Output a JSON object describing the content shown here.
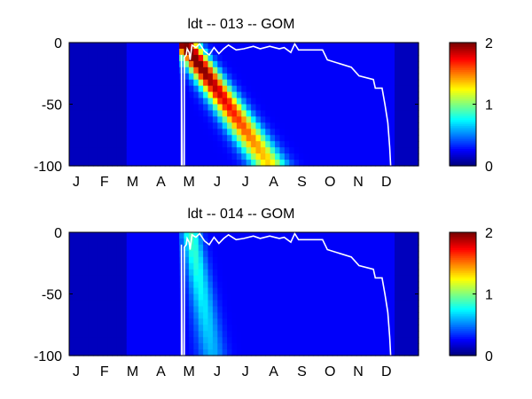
{
  "chart_data": [
    {
      "type": "heatmap",
      "title": "ldt -- 013 -- GOM",
      "x_tick_labels": [
        "J",
        "F",
        "M",
        "A",
        "M",
        "J",
        "J",
        "A",
        "S",
        "O",
        "N",
        "D"
      ],
      "y_ticks": [
        0,
        -50,
        -100
      ],
      "ylim": [
        -100,
        0
      ],
      "xlim_day_of_year": [
        1,
        365
      ],
      "color_range": [
        0,
        2
      ],
      "colorbar_ticks": [
        0,
        1,
        2
      ],
      "colormap": "jet",
      "grid": false,
      "legend": "colorbar-right",
      "hotspot": {
        "start_day": 125,
        "start_depth": -5,
        "end_day": 210,
        "end_depth": -100,
        "peak_value": 1.95,
        "width_days": 13
      },
      "background_level": 0.12,
      "contour_line": {
        "color": "#ffffff",
        "points": [
          [
            118,
            -100
          ],
          [
            118,
            -10
          ],
          [
            119,
            -100
          ],
          [
            121,
            -100
          ],
          [
            121,
            -12
          ],
          [
            123,
            -10
          ],
          [
            124,
            -5
          ],
          [
            126,
            -8
          ],
          [
            127,
            -14
          ],
          [
            129,
            -2
          ],
          [
            133,
            -4
          ],
          [
            137,
            -1
          ],
          [
            142,
            -7
          ],
          [
            147,
            -10
          ],
          [
            152,
            -4
          ],
          [
            157,
            -9
          ],
          [
            162,
            -5
          ],
          [
            167,
            -2
          ],
          [
            175,
            -6
          ],
          [
            183,
            -5
          ],
          [
            193,
            -3
          ],
          [
            200,
            -5
          ],
          [
            210,
            -3
          ],
          [
            220,
            -5
          ],
          [
            225,
            -4
          ],
          [
            232,
            -8
          ],
          [
            236,
            -1
          ],
          [
            240,
            -6
          ],
          [
            250,
            -6
          ],
          [
            265,
            -6
          ],
          [
            270,
            -14
          ],
          [
            295,
            -20
          ],
          [
            303,
            -27
          ],
          [
            318,
            -30
          ],
          [
            320,
            -37
          ],
          [
            327,
            -37
          ],
          [
            330,
            -50
          ],
          [
            333,
            -65
          ],
          [
            335,
            -85
          ],
          [
            336,
            -100
          ]
        ]
      }
    },
    {
      "type": "heatmap",
      "title": "ldt -- 014 -- GOM",
      "x_tick_labels": [
        "J",
        "F",
        "M",
        "A",
        "M",
        "J",
        "J",
        "A",
        "S",
        "O",
        "N",
        "D"
      ],
      "y_ticks": [
        0,
        -50,
        -100
      ],
      "ylim": [
        -100,
        0
      ],
      "xlim_day_of_year": [
        1,
        365
      ],
      "color_range": [
        0,
        2
      ],
      "colorbar_ticks": [
        0,
        1,
        2
      ],
      "colormap": "jet",
      "grid": false,
      "legend": "colorbar-right",
      "hotspot": {
        "start_day": 128,
        "start_depth": -3,
        "end_day": 150,
        "end_depth": -100,
        "peak_value": 0.65,
        "width_days": 10
      },
      "background_level": 0.12,
      "contour_line": {
        "color": "#ffffff",
        "points": [
          [
            118,
            -100
          ],
          [
            118,
            -10
          ],
          [
            119,
            -100
          ],
          [
            121,
            -100
          ],
          [
            121,
            -12
          ],
          [
            123,
            -10
          ],
          [
            124,
            -5
          ],
          [
            126,
            -8
          ],
          [
            127,
            -14
          ],
          [
            129,
            -2
          ],
          [
            133,
            -4
          ],
          [
            137,
            -1
          ],
          [
            142,
            -7
          ],
          [
            147,
            -10
          ],
          [
            152,
            -4
          ],
          [
            157,
            -9
          ],
          [
            162,
            -5
          ],
          [
            167,
            -2
          ],
          [
            175,
            -6
          ],
          [
            183,
            -5
          ],
          [
            193,
            -3
          ],
          [
            200,
            -5
          ],
          [
            210,
            -3
          ],
          [
            220,
            -5
          ],
          [
            225,
            -4
          ],
          [
            232,
            -8
          ],
          [
            236,
            -1
          ],
          [
            240,
            -6
          ],
          [
            250,
            -6
          ],
          [
            265,
            -6
          ],
          [
            270,
            -14
          ],
          [
            295,
            -20
          ],
          [
            303,
            -27
          ],
          [
            318,
            -30
          ],
          [
            320,
            -37
          ],
          [
            327,
            -37
          ],
          [
            330,
            -50
          ],
          [
            333,
            -65
          ],
          [
            335,
            -85
          ],
          [
            336,
            -100
          ]
        ]
      }
    }
  ]
}
